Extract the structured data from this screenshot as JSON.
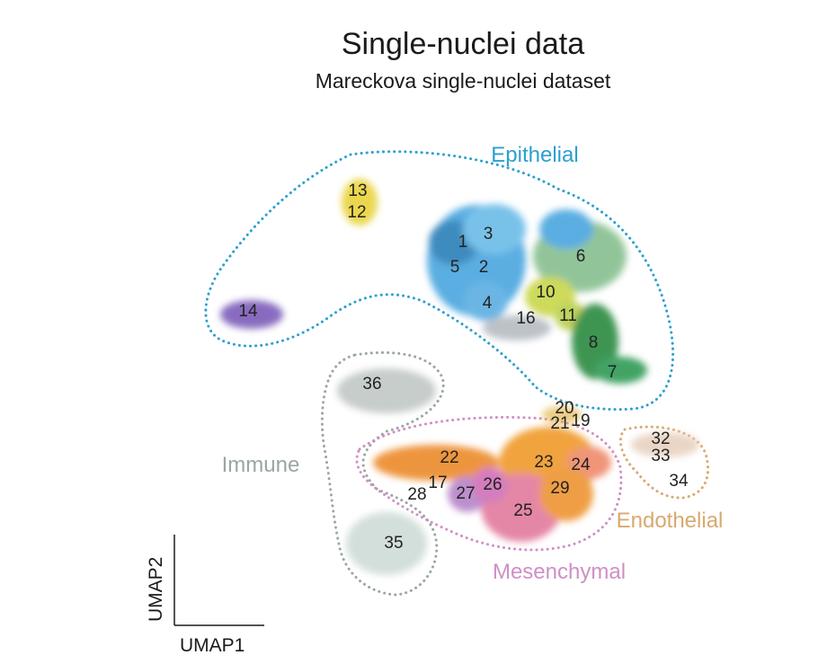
{
  "chart_data": {
    "type": "scatter",
    "title": "Single-nuclei data",
    "subtitle": "Mareckova single-nuclei dataset",
    "xlabel": "UMAP1",
    "ylabel": "UMAP2",
    "grid": false,
    "groups": [
      {
        "name": "Epithelial",
        "color": "#2c9fd0"
      },
      {
        "name": "Immune",
        "color": "#9aa6a2"
      },
      {
        "name": "Mesenchymal",
        "color": "#cf8fc6"
      },
      {
        "name": "Endothelial",
        "color": "#d8a96e"
      }
    ],
    "clusters": [
      {
        "label": "1",
        "group": "Epithelial",
        "color": "#2a7fb8"
      },
      {
        "label": "2",
        "group": "Epithelial",
        "color": "#4aa6df"
      },
      {
        "label": "3",
        "group": "Epithelial",
        "color": "#6bbce8"
      },
      {
        "label": "4",
        "group": "Epithelial",
        "color": "#5aaee2"
      },
      {
        "label": "5",
        "group": "Epithelial",
        "color": "#3d95cf"
      },
      {
        "label": "6",
        "group": "Epithelial",
        "color": "#86bf8f"
      },
      {
        "label": "7",
        "group": "Epithelial",
        "color": "#2f9a55"
      },
      {
        "label": "8",
        "group": "Epithelial",
        "color": "#2b8a3f"
      },
      {
        "label": "10",
        "group": "Epithelial",
        "color": "#c9d64a"
      },
      {
        "label": "11",
        "group": "Epithelial",
        "color": "#b8cf4e"
      },
      {
        "label": "12",
        "group": "Epithelial",
        "color": "#efe37c"
      },
      {
        "label": "13",
        "group": "Epithelial",
        "color": "#e8d33a"
      },
      {
        "label": "14",
        "group": "Epithelial",
        "color": "#7b5cb9"
      },
      {
        "label": "16",
        "group": "Epithelial",
        "color": "#b6bcc2"
      },
      {
        "label": "17",
        "group": "Mesenchymal",
        "color": "#c68ac0"
      },
      {
        "label": "19",
        "group": "Mesenchymal",
        "color": "#e3a04a"
      },
      {
        "label": "20",
        "group": "Mesenchymal",
        "color": "#e0b03a"
      },
      {
        "label": "21",
        "group": "Mesenchymal",
        "color": "#e49a3a"
      },
      {
        "label": "22",
        "group": "Mesenchymal",
        "color": "#ec8a2c"
      },
      {
        "label": "23",
        "group": "Mesenchymal",
        "color": "#f09a2a"
      },
      {
        "label": "24",
        "group": "Mesenchymal",
        "color": "#ef8a6a"
      },
      {
        "label": "25",
        "group": "Mesenchymal",
        "color": "#e27a9c"
      },
      {
        "label": "26",
        "group": "Mesenchymal",
        "color": "#d070b8"
      },
      {
        "label": "27",
        "group": "Mesenchymal",
        "color": "#b583c8"
      },
      {
        "label": "28",
        "group": "Mesenchymal",
        "color": "#e8e8ea"
      },
      {
        "label": "29",
        "group": "Mesenchymal",
        "color": "#ee9430"
      },
      {
        "label": "32",
        "group": "Endothelial",
        "color": "#e8d2c0"
      },
      {
        "label": "33",
        "group": "Endothelial",
        "color": "#eedfd2"
      },
      {
        "label": "34",
        "group": "Endothelial",
        "color": "#f2e4d8"
      },
      {
        "label": "35",
        "group": "Immune",
        "color": "#cfdcd6"
      },
      {
        "label": "36",
        "group": "Immune",
        "color": "#a7b1ad"
      }
    ]
  }
}
